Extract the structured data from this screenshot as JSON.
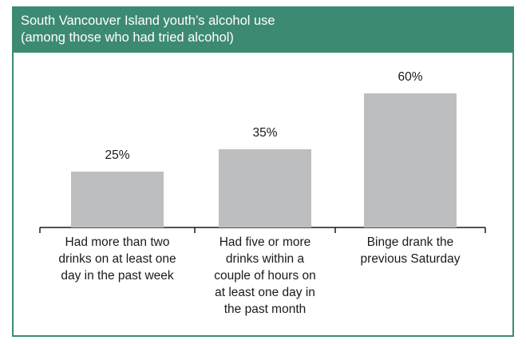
{
  "chart_data": {
    "type": "bar",
    "title": "South Vancouver Island youth’s alcohol use",
    "subtitle": "(among those who had tried alcohol)",
    "categories": [
      [
        "Had more than two",
        "drinks on at least one",
        "day in the past week"
      ],
      [
        "Had five or more",
        "drinks within a",
        "couple of hours on",
        "at least one day in",
        "the past month"
      ],
      [
        "Binge drank the",
        "previous Saturday"
      ]
    ],
    "values": [
      25,
      35,
      60
    ],
    "value_labels": [
      "25%",
      "35%",
      "60%"
    ],
    "ylim": [
      0,
      100
    ],
    "grid": false,
    "legend": "none"
  },
  "colors": {
    "header_bg": "#3d8a74",
    "header_text": "#ffffff",
    "bar": "#bdbec0",
    "axis": "#1a1a1a"
  }
}
